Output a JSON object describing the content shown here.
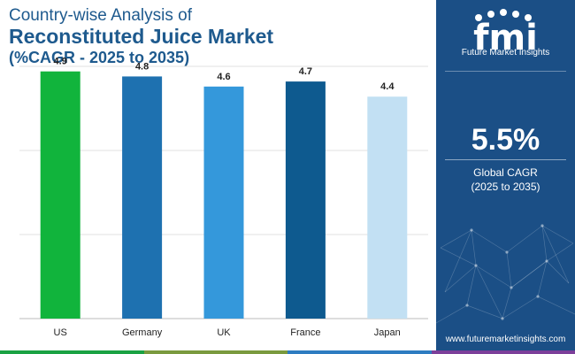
{
  "title": {
    "line1": "Country-wise Analysis of",
    "line2": "Reconstituted Juice Market",
    "line3": "(%CAGR - 2025 to 2035)"
  },
  "chart_data": {
    "type": "bar",
    "title": "Country-wise Analysis of Reconstituted Juice Market (%CAGR - 2025 to 2035)",
    "categories": [
      "US",
      "Germany",
      "UK",
      "France",
      "Japan"
    ],
    "values": [
      4.9,
      4.8,
      4.6,
      4.7,
      4.4
    ],
    "colors": [
      "#11b43c",
      "#1e71b0",
      "#3498db",
      "#0e5a8f",
      "#c2e0f3"
    ],
    "xlabel": "",
    "ylabel": "",
    "ylim": [
      0,
      5
    ],
    "grid": true
  },
  "brand": {
    "logo_letters": "fmi",
    "name": "Future Market Insights",
    "website": "www.futuremarketinsights.com"
  },
  "summary": {
    "value": "5.5%",
    "label": "Global CAGR",
    "period": "(2025 to 2035)"
  },
  "colors": {
    "title": "#1e5a8e",
    "panel": "#1b4f86",
    "bottom_bar": [
      "#1aa243",
      "#7a9a3e",
      "#2d7cc1",
      "#7c3f9a"
    ]
  }
}
